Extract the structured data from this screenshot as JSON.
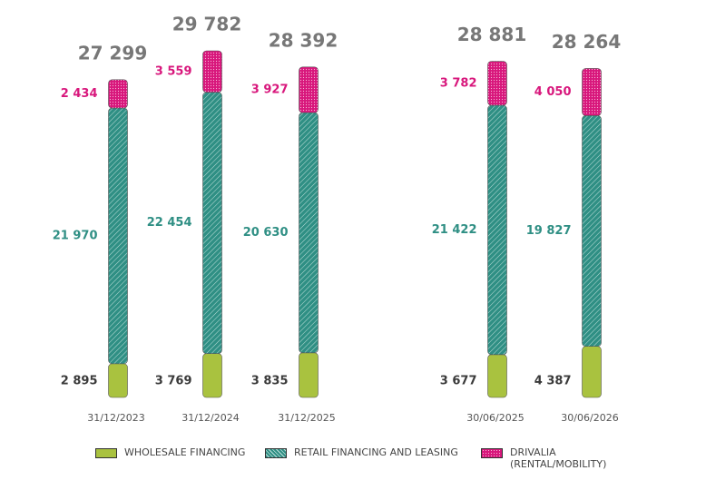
{
  "chart_data": {
    "type": "stacked-bar",
    "categories": [
      "31/12/2023",
      "31/12/2024",
      "31/12/2025",
      "30/06/2025",
      "30/06/2026"
    ],
    "series": [
      {
        "name": "WHOLESALE FINANCING",
        "color": "#a9c23f",
        "label_color": "#3a3a3a",
        "values": [
          2895,
          3769,
          3835,
          3677,
          4387
        ],
        "value_labels": [
          "2 895",
          "3 769",
          "3 835",
          "3 677",
          "4 387"
        ]
      },
      {
        "name": "RETAIL FINANCING AND LEASING",
        "color": "#2f8f84",
        "label_color": "#2f8f84",
        "values": [
          21970,
          22454,
          20630,
          21422,
          19827
        ],
        "value_labels": [
          "21 970",
          "22 454",
          "20 630",
          "21 422",
          "19 827"
        ]
      },
      {
        "name": "DRIVALIA (RENTAL/MOBILITY)",
        "color": "#d8177c",
        "label_color": "#d8177c",
        "values": [
          2434,
          3559,
          3927,
          3782,
          4050
        ],
        "value_labels": [
          "2 434",
          "3 559",
          "3 927",
          "3 782",
          "4 050"
        ]
      }
    ],
    "totals": [
      27299,
      29782,
      28392,
      28881,
      28264
    ],
    "total_labels": [
      "27 299",
      "29 782",
      "28 392",
      "28 881",
      "28 264"
    ]
  }
}
